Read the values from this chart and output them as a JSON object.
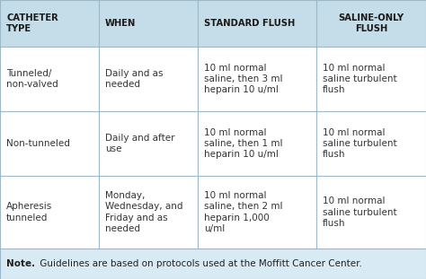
{
  "header_bg": "#c5dde8",
  "row_bg": "#ffffff",
  "note_bg": "#d8eaf3",
  "fig_bg": "#c5dde8",
  "border_color": "#9ab8c8",
  "header_text_color": "#1a1a1a",
  "body_text_color": "#333333",
  "note_text_color": "#222222",
  "headers": [
    "CATHETER\nTYPE",
    "WHEN",
    "STANDARD FLUSH",
    "SALINE-ONLY\nFLUSH"
  ],
  "rows": [
    [
      "Tunneled/\nnon-valved",
      "Daily and as\nneeded",
      "10 ml normal\nsaline, then 3 ml\nheparin 10 u/ml",
      "10 ml normal\nsaline turbulent\nflush"
    ],
    [
      "Non-tunneled",
      "Daily and after\nuse",
      "10 ml normal\nsaline, then 1 ml\nheparin 10 u/ml",
      "10 ml normal\nsaline turbulent\nflush"
    ],
    [
      "Apheresis\ntunneled",
      "Monday,\nWednesday, and\nFriday and as\nneeded",
      "10 ml normal\nsaline, then 2 ml\nheparin 1,000\nu/ml",
      "10 ml normal\nsaline turbulent\nflush"
    ]
  ],
  "note_bold": "Note.",
  "note_rest": " Guidelines are based on protocols used at the Moffitt Cancer Center.",
  "header_fontsize": 7.2,
  "body_fontsize": 7.5,
  "note_fontsize": 7.5,
  "fig_width": 4.74,
  "fig_height": 3.11,
  "dpi": 100
}
